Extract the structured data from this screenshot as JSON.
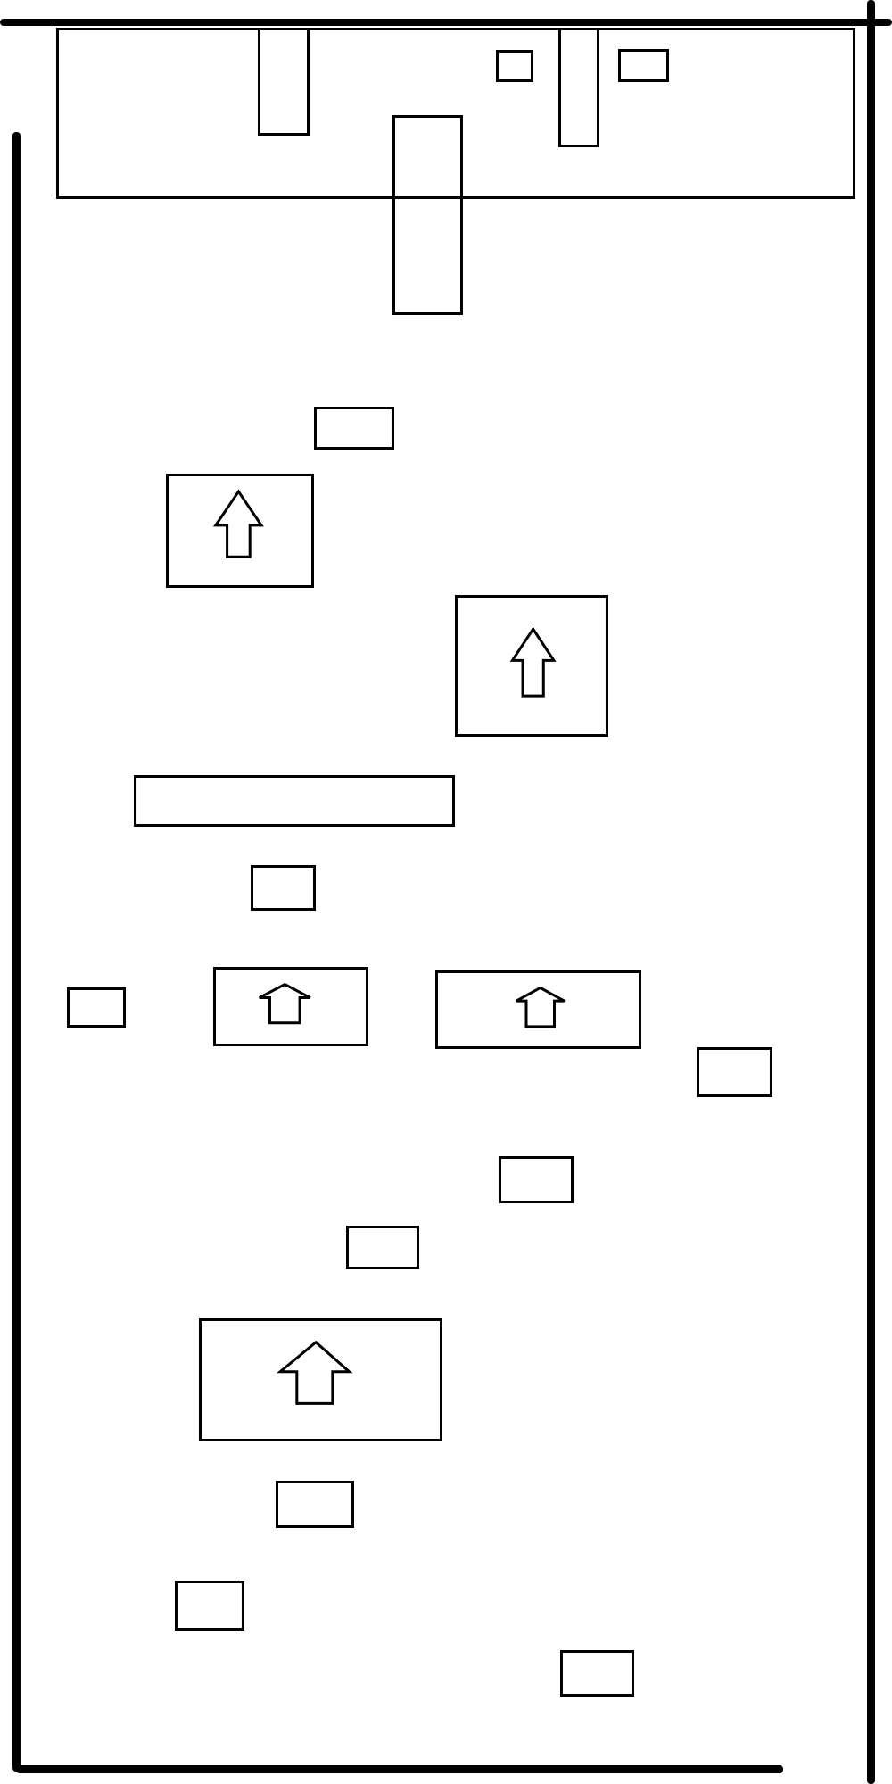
{
  "diagram": {
    "colors": {
      "background": "#ffffff",
      "stroke": "#000000"
    },
    "icons": {
      "arrow": "up-arrow-icon"
    }
  }
}
